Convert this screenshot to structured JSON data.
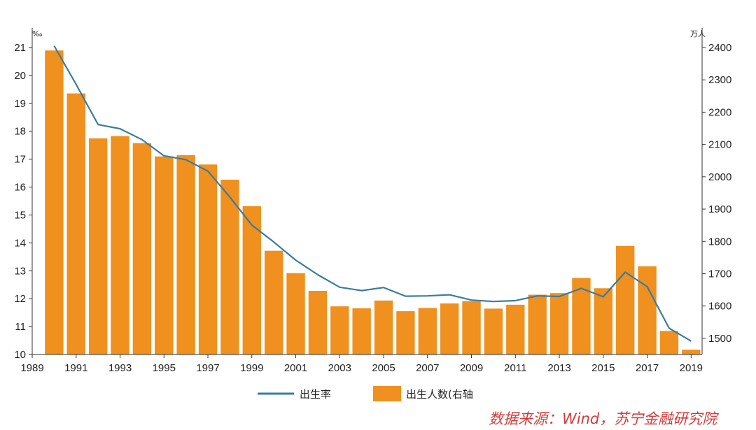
{
  "chart_data": {
    "type": "bar+line",
    "x": [
      1990,
      1991,
      1992,
      1993,
      1994,
      1995,
      1996,
      1997,
      1998,
      1999,
      2000,
      2001,
      2002,
      2003,
      2004,
      2005,
      2006,
      2007,
      2008,
      2009,
      2010,
      2011,
      2012,
      2013,
      2014,
      2015,
      2016,
      2017,
      2018,
      2019
    ],
    "x_tick_labels": [
      "1989",
      "1991",
      "1993",
      "1995",
      "1997",
      "1999",
      "2001",
      "2003",
      "2005",
      "2007",
      "2009",
      "2011",
      "2013",
      "2015",
      "2017",
      "2019"
    ],
    "series": [
      {
        "name": "出生率",
        "type": "line",
        "axis": "left",
        "color": "#3a7ca0",
        "values": [
          21.06,
          19.68,
          18.24,
          18.09,
          17.7,
          17.12,
          16.98,
          16.57,
          15.64,
          14.64,
          14.03,
          13.38,
          12.86,
          12.41,
          12.29,
          12.4,
          12.09,
          12.1,
          12.14,
          11.95,
          11.9,
          11.93,
          12.1,
          12.08,
          12.37,
          12.07,
          12.95,
          12.43,
          10.94,
          10.48
        ]
      },
      {
        "name": "出生人数(右轴",
        "type": "bar",
        "axis": "right",
        "color": "#f0901e",
        "values": [
          2391,
          2258,
          2119,
          2126,
          2104,
          2063,
          2067,
          2038,
          1991,
          1909,
          1771,
          1702,
          1647,
          1599,
          1593,
          1617,
          1584,
          1594,
          1608,
          1615,
          1592,
          1604,
          1635,
          1640,
          1687,
          1655,
          1786,
          1723,
          1523,
          1465
        ]
      }
    ],
    "y_left": {
      "unit": "‰",
      "ylim": [
        10,
        21
      ],
      "ticks": [
        "10",
        "11",
        "12",
        "13",
        "14",
        "15",
        "16",
        "17",
        "18",
        "19",
        "20",
        "21"
      ]
    },
    "y_right": {
      "unit": "万人",
      "ylim": [
        1450,
        2400
      ],
      "ticks": [
        "1500",
        "1600",
        "1700",
        "1800",
        "1900",
        "2000",
        "2100",
        "2200",
        "2300",
        "2400"
      ]
    },
    "grid": false,
    "legend_position": "bottom"
  },
  "source_note": "数据来源：Wind，苏宁金融研究院",
  "colors": {
    "bar": "#f0901e",
    "line": "#3a7ca0",
    "axis": "#333333",
    "source": "#d23b3b"
  }
}
